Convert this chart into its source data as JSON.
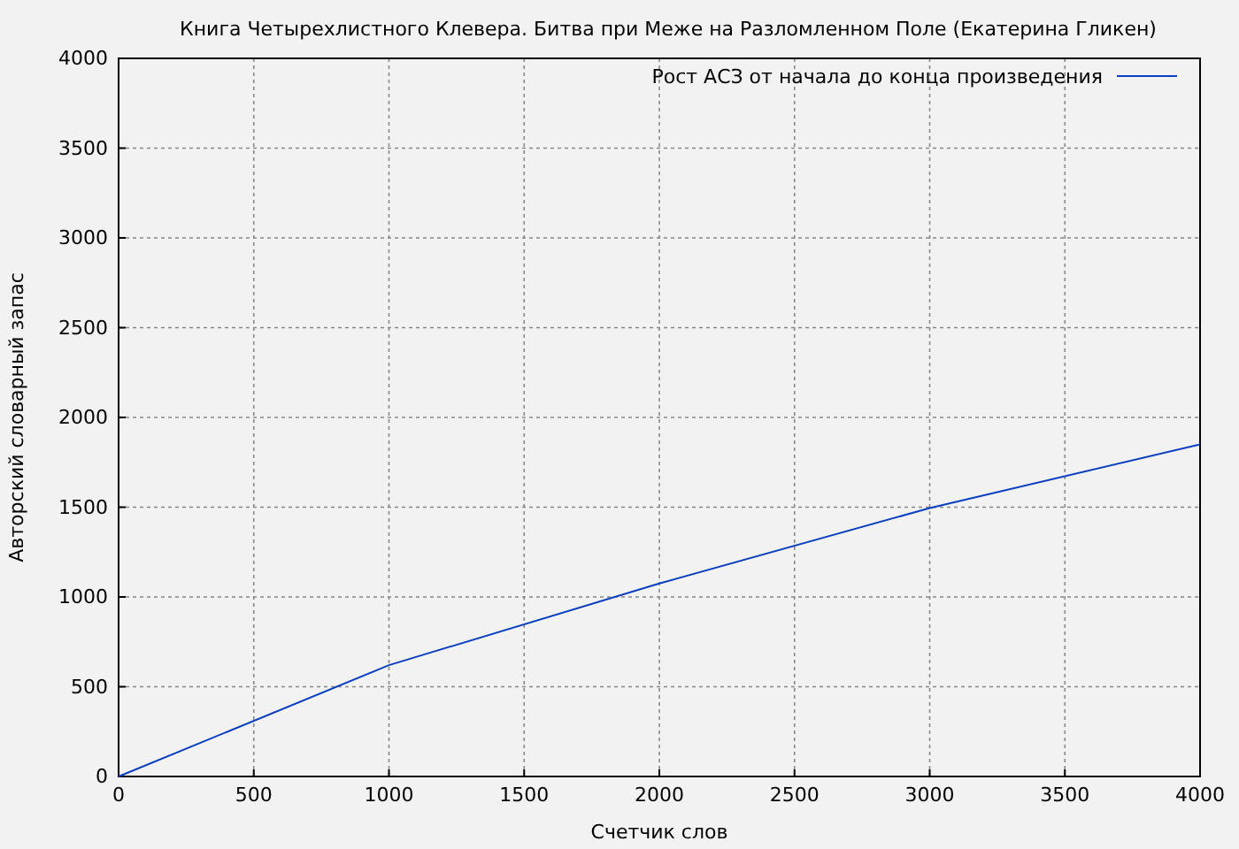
{
  "chart_data": {
    "type": "line",
    "title": "Книга Четырехлистного Клевера. Битва при Меже на Разломленном Поле (Екатерина Гликен)",
    "xlabel": "Счетчик слов",
    "ylabel": "Авторский словарный запас",
    "x": [
      0,
      1000,
      2000,
      3000,
      4000
    ],
    "series": [
      {
        "name": "Рост АСЗ от начала до конца произведения",
        "color": "#0a3fbf",
        "values": [
          0,
          620,
          1075,
          1495,
          1850
        ]
      }
    ],
    "xlim": [
      0,
      4000
    ],
    "xticks": [
      0,
      500,
      1000,
      1500,
      2000,
      2500,
      3000,
      3500,
      4000
    ],
    "ylim": [
      0,
      4000
    ],
    "yticks": [
      0,
      500,
      1000,
      1500,
      2000,
      2500,
      3000,
      3500,
      4000
    ],
    "grid": true,
    "legend": "top right",
    "marker": "none",
    "line_style": "solid"
  }
}
